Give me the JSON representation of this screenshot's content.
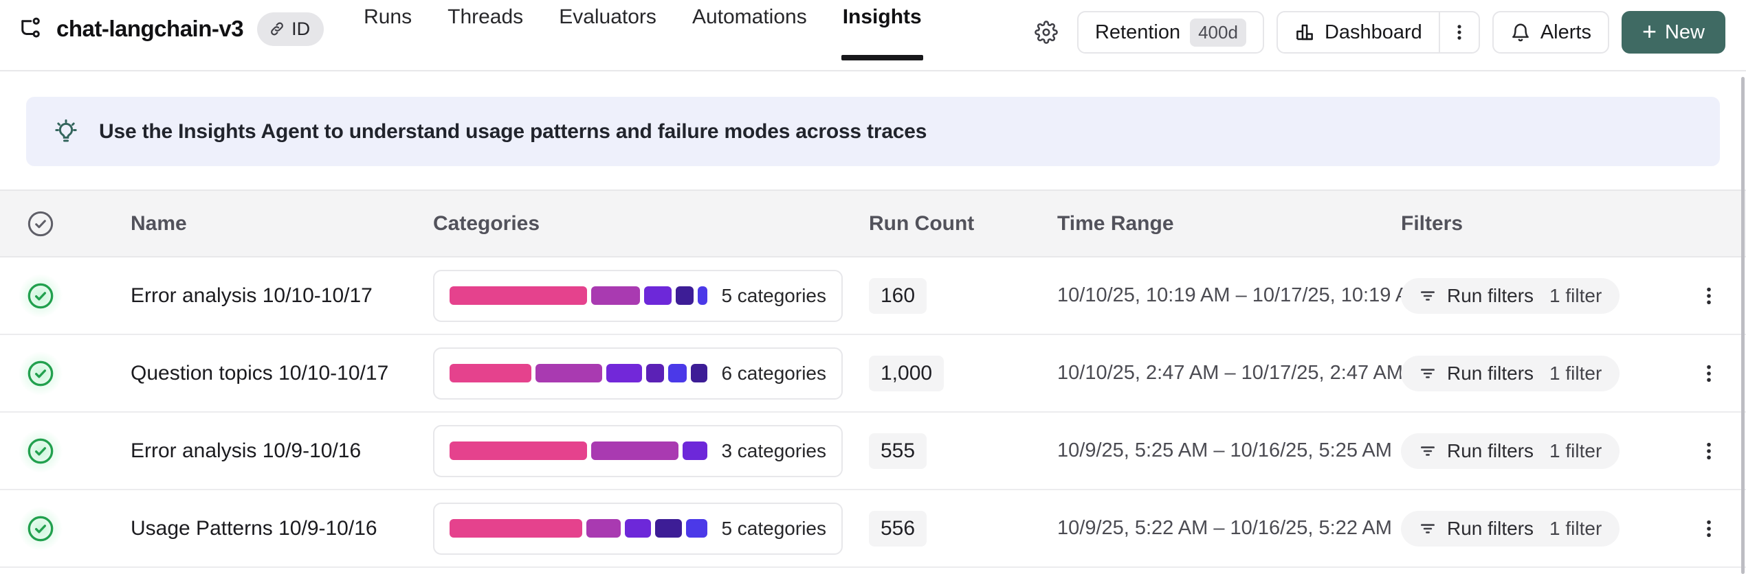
{
  "topbar": {
    "project_name": "chat-langchain-v3",
    "id_badge_label": "ID",
    "tabs": [
      {
        "label": "Runs",
        "active": false
      },
      {
        "label": "Threads",
        "active": false
      },
      {
        "label": "Evaluators",
        "active": false
      },
      {
        "label": "Automations",
        "active": false
      },
      {
        "label": "Insights",
        "active": true
      }
    ],
    "retention_label": "Retention",
    "retention_badge": "400d",
    "dashboard_label": "Dashboard",
    "alerts_label": "Alerts",
    "new_plus": "+",
    "new_label": "New"
  },
  "banner": {
    "text": "Use the Insights Agent to understand usage patterns and failure modes across traces"
  },
  "table": {
    "headers": {
      "name": "Name",
      "categories": "Categories",
      "run_count": "Run Count",
      "time_range": "Time Range",
      "filters": "Filters"
    },
    "rows": [
      {
        "name": "Error analysis 10/10-10/17",
        "categories_label": "5 categories",
        "segments": [
          {
            "color": "#e5428d",
            "pct": 57
          },
          {
            "color": "#a93ab1",
            "pct": 20
          },
          {
            "color": "#6d28d9",
            "pct": 11.5
          },
          {
            "color": "#3d1d96",
            "pct": 7.5
          },
          {
            "color": "#4b39e8",
            "pct": 4
          }
        ],
        "run_count": "160",
        "time_range": "10/10/25, 10:19 AM – 10/17/25, 10:19 AM",
        "filters_label": "Run filters",
        "filters_count": "1 filter"
      },
      {
        "name": "Question topics 10/10-10/17",
        "categories_label": "6 categories",
        "segments": [
          {
            "color": "#e5428d",
            "pct": 34.5
          },
          {
            "color": "#a93ab1",
            "pct": 28
          },
          {
            "color": "#7228d9",
            "pct": 15
          },
          {
            "color": "#5b21b6",
            "pct": 7.5
          },
          {
            "color": "#4b39e8",
            "pct": 8
          },
          {
            "color": "#3d1d96",
            "pct": 7
          }
        ],
        "run_count": "1,000",
        "time_range": "10/10/25, 2:47 AM – 10/17/25, 2:47 AM",
        "filters_label": "Run filters",
        "filters_count": "1 filter"
      },
      {
        "name": "Error analysis 10/9-10/16",
        "categories_label": "3 categories",
        "segments": [
          {
            "color": "#e5428d",
            "pct": 55
          },
          {
            "color": "#a93ab1",
            "pct": 35
          },
          {
            "color": "#6d28d9",
            "pct": 10
          }
        ],
        "run_count": "555",
        "time_range": "10/9/25, 5:25 AM – 10/16/25, 5:25 AM",
        "filters_label": "Run filters",
        "filters_count": "1 filter"
      },
      {
        "name": "Usage Patterns 10/9-10/16",
        "categories_label": "5 categories",
        "segments": [
          {
            "color": "#e5428d",
            "pct": 55
          },
          {
            "color": "#a93ab1",
            "pct": 14
          },
          {
            "color": "#6d28d9",
            "pct": 11
          },
          {
            "color": "#3d1d96",
            "pct": 11
          },
          {
            "color": "#4b39e8",
            "pct": 9
          }
        ],
        "run_count": "556",
        "time_range": "10/9/25, 5:22 AM – 10/16/25, 5:22 AM",
        "filters_label": "Run filters",
        "filters_count": "1 filter"
      }
    ]
  },
  "colors": {
    "accent_new_button": "#3f6a63",
    "banner_bg": "#eef0fb",
    "header_bg": "#f4f4f5",
    "check_green": "#22a04e"
  }
}
